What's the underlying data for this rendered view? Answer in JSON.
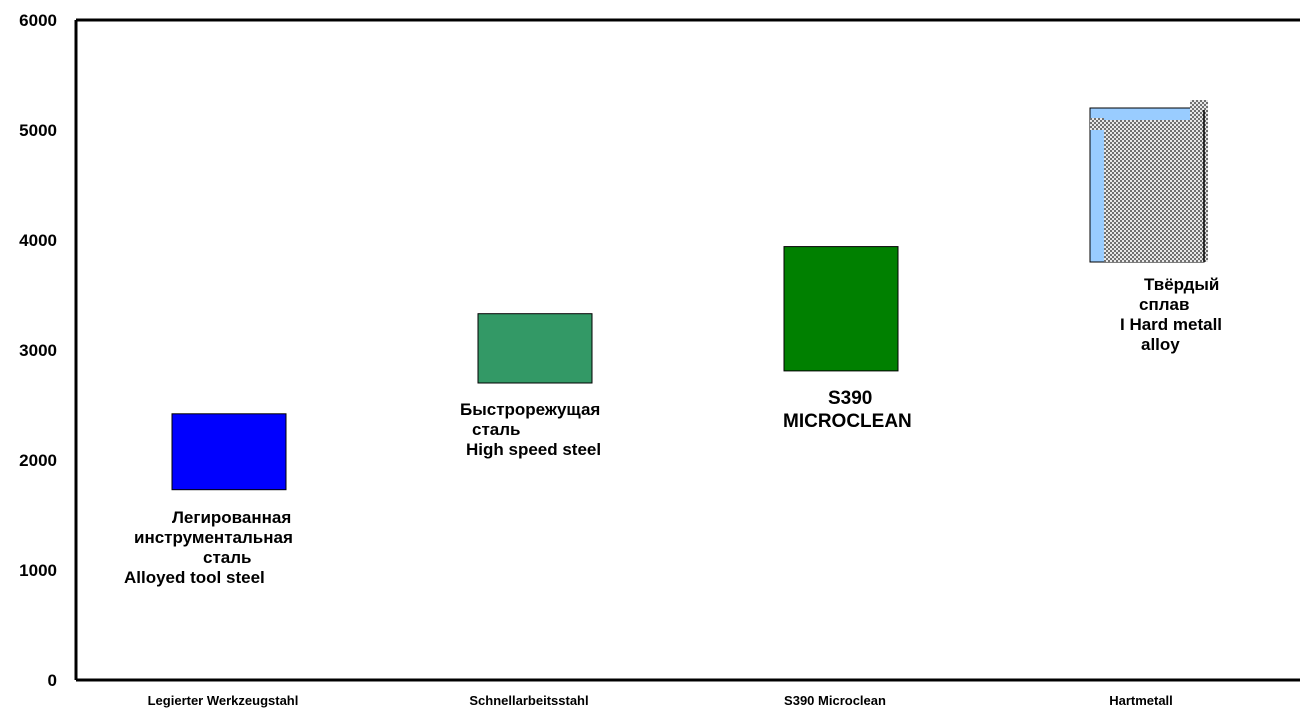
{
  "chart_data": {
    "type": "floating-bar",
    "categories": [
      "Legierter Werkzeugstahl",
      "Schnellarbeitsstahl",
      "S390 Microclean",
      "Hartmetall"
    ],
    "y_ticks": [
      "0",
      "1000",
      "2000",
      "3000",
      "4000",
      "5000",
      "6000"
    ],
    "ylim": [
      0,
      6000
    ],
    "grid": false,
    "series": [
      {
        "ranges": [
          {
            "low": 1730,
            "high": 2420
          },
          {
            "low": 2700,
            "high": 3330
          },
          {
            "low": 2810,
            "high": 3940
          },
          {
            "low": 3800,
            "high": 5200
          }
        ]
      }
    ],
    "colors": [
      "#0000ff",
      "#339966",
      "#008000",
      "#99ccff"
    ],
    "hatch_color": "#808080",
    "annotations": [
      {
        "lines": [
          "Легированная",
          "инструментальная",
          "сталь",
          "Alloyed tool steel"
        ]
      },
      {
        "lines": [
          "Быстрорежущая",
          "сталь",
          "High speed steel"
        ]
      },
      {
        "lines": [
          "S390",
          "MICROCLEAN"
        ]
      },
      {
        "lines": [
          "Твёрдый",
          "сплав",
          "I Hard metall",
          "alloy"
        ]
      }
    ]
  }
}
